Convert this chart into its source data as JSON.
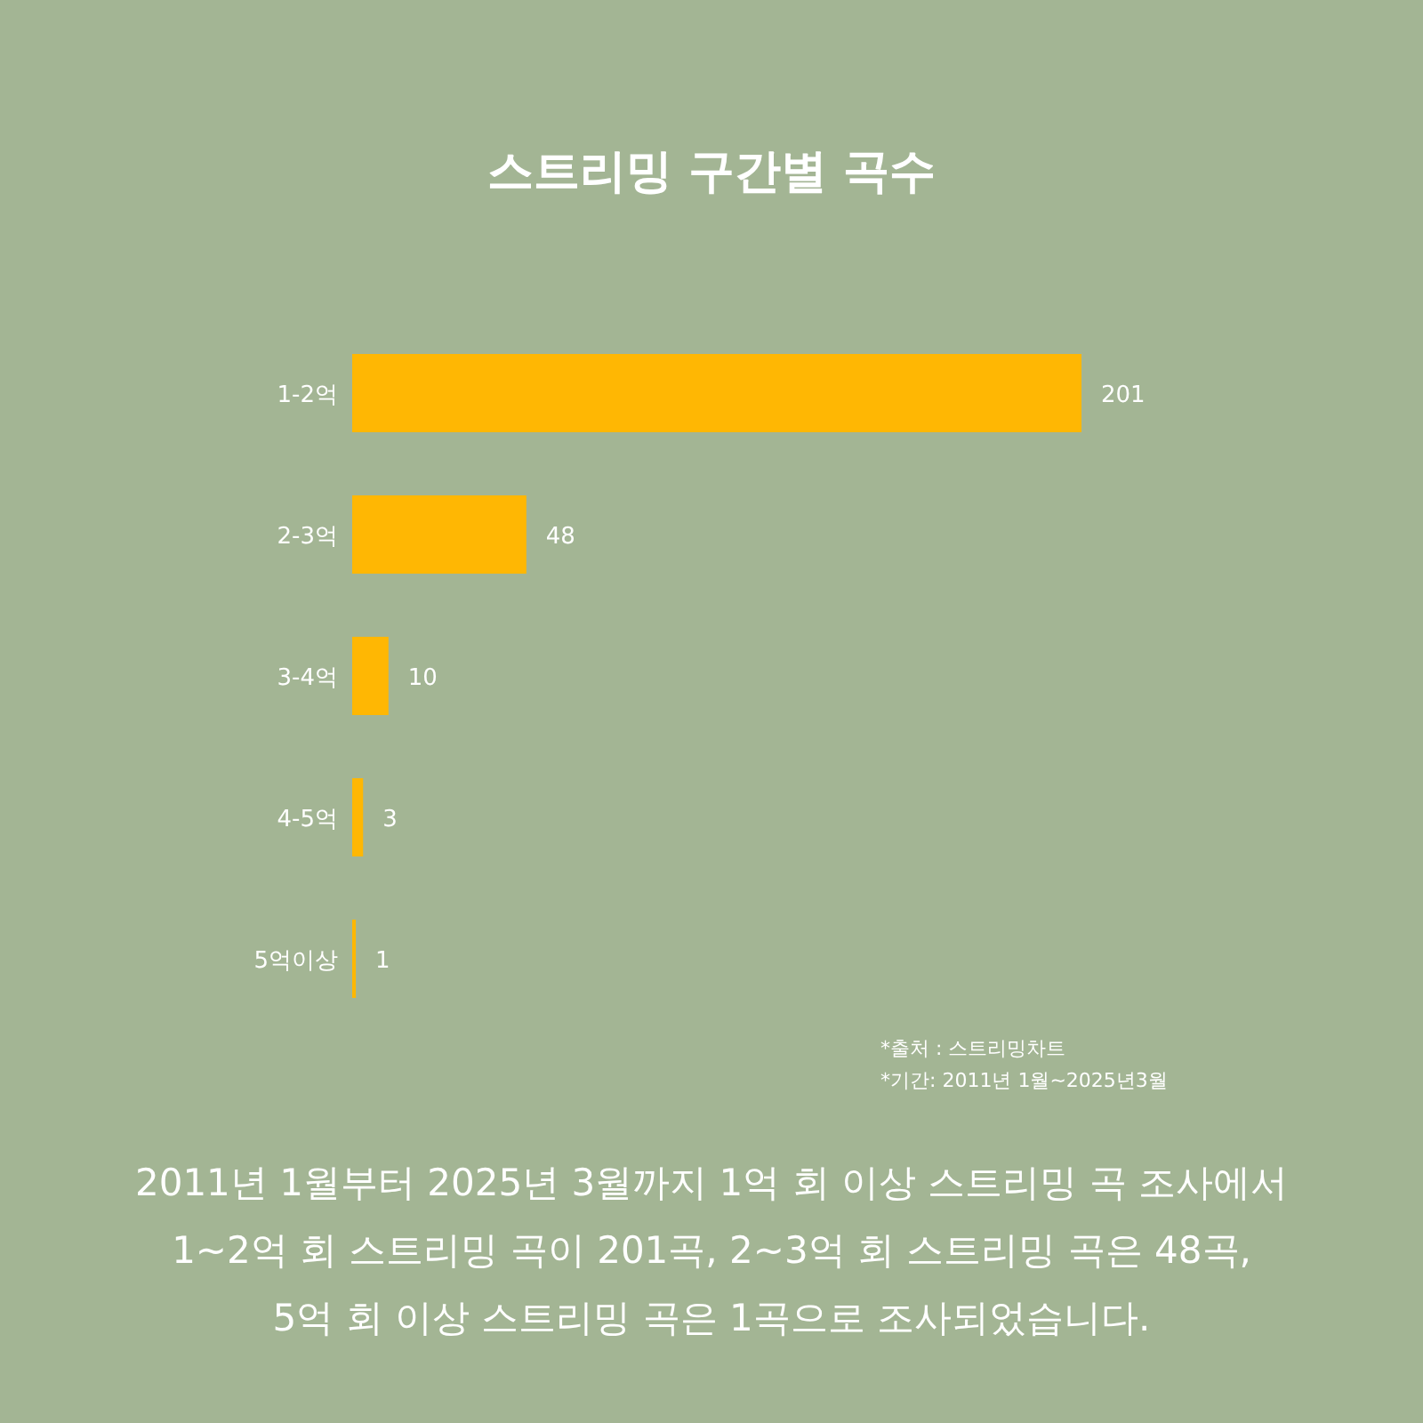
{
  "chart_data": {
    "type": "bar",
    "orientation": "horizontal",
    "title": "스트리밍 구간별 곡수",
    "categories": [
      "1-2억",
      "2-3억",
      "3-4억",
      "4-5억",
      "5억이상"
    ],
    "values": [
      201,
      48,
      10,
      3,
      1
    ],
    "color": "#ffb703",
    "data_labels": true,
    "annotations": [
      "*출처 : 스트리밍차트",
      "*기간: 2011년 1월~2025년3월",
      "2011년 1월부터 2025년 3월까지 1억 회 이상 스트리밍 곡 조사에서\n1~2억 회 스트리밍 곡이 201곡, 2~3억 회 스트리밍 곡은 48곡,\n5억 회 이상 스트리밍 곡은 1곡으로 조사되었습니다."
    ]
  }
}
